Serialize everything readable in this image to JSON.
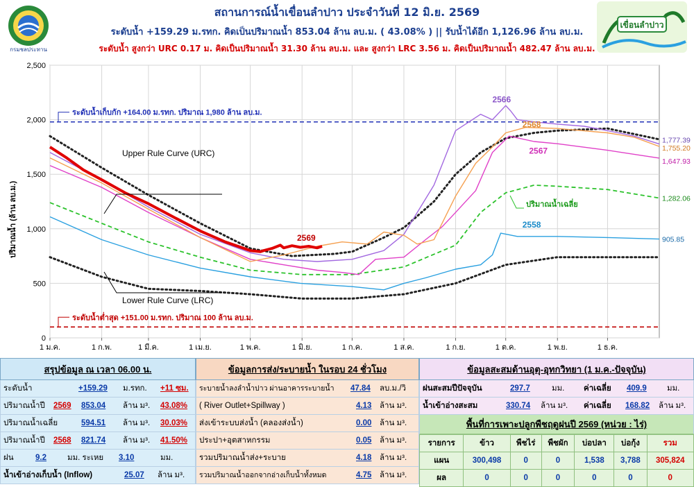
{
  "header": {
    "title": "สถานการณ์น้ำเขื่อนลำปาว ประจำวันที่ 12 มิ.ย. 2569",
    "line2": "ระดับน้ำ +159.29 ม.รทก.  คิดเป็นปริมาณน้ำ 853.04 ล้าน ลบ.ม. ( 43.08% )  || รับน้ำได้อีก 1,126.96 ล้าน ลบ.ม.",
    "line3": "ระดับน้ำ สูงกว่า URC 0.17 ม. คิดเป็นปริมาณน้ำ 31.30 ล้าน ลบ.ม. และ สูงกว่า LRC 3.56 ม. คิดเป็นปริมาณน้ำ 482.47 ล้าน ลบ.ม.",
    "left_logo_label": "กรมชลประทาน",
    "right_logo_label": "เขื่อนลำปาว"
  },
  "chart_data": {
    "type": "line",
    "ylabel": "ปริมาณน้ำ (ล้าน ลบ.ม.)",
    "ylim": [
      0,
      2500
    ],
    "yticks": [
      "0",
      "500",
      "1,000",
      "1,500",
      "2,000",
      "2,500"
    ],
    "ytick_values": [
      0,
      500,
      1000,
      1500,
      2000,
      2500
    ],
    "xlim": [
      0,
      365
    ],
    "xtick_labels": [
      "1 ม.ค.",
      "1 ก.พ.",
      "1 มี.ค.",
      "1 เม.ย.",
      "1 พ.ค.",
      "1 มิ.ย.",
      "1 ก.ค.",
      "1 ส.ค.",
      "1 ก.ย.",
      "1 ต.ค.",
      "1 พ.ย.",
      "1 ธ.ค."
    ],
    "xtick_days": [
      0,
      31,
      59,
      90,
      120,
      151,
      181,
      212,
      243,
      273,
      304,
      334
    ],
    "grid": true,
    "reference_lines": [
      {
        "label": "ระดับน้ำเก็บกัก  +164.00 ม.รทก. ปริมาณ 1,980 ล้าน ลบ.ม.",
        "value": 1980,
        "color": "#1f2fb5"
      },
      {
        "label": "ระดับน้ำต่ำสุด  +151.00  ม.รทก. ปริมาณ 100 ล้าน ลบ.ม.",
        "value": 100,
        "color": "#c00000"
      }
    ],
    "annotations": [
      "Upper Rule Curve (URC)",
      "Lower Rule Curve (LRC)",
      "ปริมาณน้ำเฉลี่ย"
    ],
    "series": [
      {
        "name": "2569",
        "color": "#e00000",
        "x": [
          0,
          10,
          20,
          31,
          45,
          59,
          75,
          90,
          105,
          120,
          126,
          128,
          133,
          138,
          140,
          145,
          150,
          155,
          160,
          163
        ],
        "y": [
          1750,
          1650,
          1540,
          1450,
          1330,
          1230,
          1100,
          980,
          880,
          800,
          790,
          800,
          820,
          850,
          825,
          845,
          830,
          840,
          825,
          840
        ]
      },
      {
        "name": "2566",
        "color": "#a268e0",
        "x": [
          0,
          31,
          59,
          90,
          120,
          140,
          160,
          181,
          200,
          212,
          230,
          243,
          258,
          265,
          273,
          276,
          280,
          290,
          304,
          320,
          334,
          350,
          365
        ],
        "y": [
          1700,
          1450,
          1200,
          950,
          780,
          720,
          700,
          720,
          800,
          950,
          1400,
          1900,
          2050,
          2000,
          2130,
          2080,
          2000,
          1980,
          1960,
          1940,
          1900,
          1850,
          1777.39
        ]
      },
      {
        "name": "2567",
        "color": "#e040c8",
        "x": [
          0,
          31,
          59,
          90,
          120,
          140,
          160,
          175,
          185,
          195,
          212,
          225,
          235,
          243,
          255,
          265,
          275,
          290,
          304,
          334,
          365
        ],
        "y": [
          1580,
          1380,
          1150,
          920,
          720,
          670,
          620,
          600,
          580,
          720,
          740,
          900,
          1020,
          1150,
          1350,
          1700,
          1850,
          1800,
          1780,
          1720,
          1647.93
        ]
      },
      {
        "name": "2568",
        "color": "#f5a050",
        "x": [
          0,
          31,
          59,
          90,
          120,
          140,
          160,
          175,
          190,
          200,
          212,
          220,
          230,
          243,
          255,
          265,
          273,
          285,
          304,
          334,
          350,
          365
        ],
        "y": [
          1650,
          1420,
          1180,
          920,
          700,
          760,
          840,
          880,
          860,
          970,
          940,
          860,
          900,
          1300,
          1600,
          1750,
          1880,
          1930,
          1920,
          1880,
          1840,
          1755.2
        ]
      },
      {
        "name": "2558",
        "color": "#2aa0e0",
        "x": [
          0,
          31,
          59,
          90,
          120,
          150,
          181,
          200,
          212,
          225,
          243,
          258,
          265,
          270,
          280,
          304,
          334,
          365
        ],
        "y": [
          1110,
          900,
          760,
          640,
          560,
          500,
          470,
          440,
          500,
          550,
          630,
          670,
          760,
          960,
          930,
          930,
          920,
          905.85
        ]
      },
      {
        "name": "ปริมาณน้ำเฉลี่ย",
        "color": "#2bc22b",
        "dashed": true,
        "x": [
          0,
          31,
          59,
          90,
          120,
          151,
          181,
          212,
          243,
          258,
          273,
          290,
          304,
          334,
          365
        ],
        "y": [
          1240,
          1050,
          880,
          740,
          620,
          580,
          580,
          650,
          850,
          1150,
          1330,
          1400,
          1390,
          1360,
          1282.06
        ]
      },
      {
        "name": "Upper Rule Curve (URC)",
        "color": "#222222",
        "dotted": true,
        "x": [
          0,
          31,
          59,
          90,
          120,
          145,
          170,
          181,
          200,
          212,
          230,
          243,
          258,
          273,
          290,
          304,
          334,
          365
        ],
        "y": [
          1850,
          1560,
          1310,
          1050,
          820,
          750,
          770,
          790,
          920,
          1010,
          1250,
          1500,
          1700,
          1830,
          1880,
          1900,
          1920,
          1820
        ]
      },
      {
        "name": "Lower Rule Curve (LRC)",
        "color": "#222222",
        "dotted": true,
        "x": [
          0,
          31,
          59,
          90,
          120,
          151,
          181,
          212,
          243,
          273,
          304,
          334,
          365
        ],
        "y": [
          740,
          560,
          450,
          430,
          400,
          360,
          360,
          400,
          500,
          670,
          740,
          740,
          740
        ]
      }
    ],
    "series_labels": [
      {
        "text": "2569",
        "series": "2569"
      },
      {
        "text": "2566",
        "series": "2566"
      },
      {
        "text": "2567",
        "series": "2567"
      },
      {
        "text": "2568",
        "series": "2568"
      },
      {
        "text": "2558",
        "series": "2558"
      }
    ],
    "end_labels": [
      "1,777.39",
      "1,755.20",
      "1,647.93",
      "1,282.06",
      "905.85"
    ]
  },
  "summary": {
    "title": "สรุปข้อมูล ณ เวลา 06.00 น.",
    "rows": [
      {
        "label": "ระดับน้ำ",
        "value": "+159.29",
        "unit": "ม.รทก.",
        "extra": "+11 ซม."
      },
      {
        "label": "ปริมาณน้ำปี",
        "year": "2569",
        "value": "853.04",
        "unit": "ล้าน ม³.",
        "extra": "43.08%"
      },
      {
        "label": "ปริมาณน้ำเฉลี่ย",
        "value": "594.51",
        "unit": "ล้าน ม³.",
        "extra": "30.03%"
      },
      {
        "label": "ปริมาณน้ำปี",
        "year": "2568",
        "value": "821.74",
        "unit": "ล้าน ม³.",
        "extra": "41.50%"
      },
      {
        "label": "ฝน",
        "value": "9.2",
        "unit": "มม. ระเหย",
        "extra": "3.10",
        "extra_unit": "มม."
      },
      {
        "label": "น้ำเข้าอ่างเก็บน้ำ (Inflow)",
        "value": "25.07",
        "unit": "ล้าน ม³."
      }
    ]
  },
  "release": {
    "title": "ข้อมูลการส่ง/ระบายน้ำ ในรอบ 24 ชั่วโมง",
    "rows": [
      {
        "label": "ระบายน้ำลงลำน้ำปาว ผ่านอาคารระบายน้ำ",
        "value": "47.84",
        "unit": "ลบ.ม./วิ"
      },
      {
        "label": "( River Outlet+Spillway )",
        "value": "4.13",
        "unit": "ล้าน ม³."
      },
      {
        "label": "ส่งเข้าระบบส่งน้ำ (คลองส่งน้ำ)",
        "value": "0.00",
        "unit": "ล้าน ม³."
      },
      {
        "label": "ประปา+อุตสาหกรรม",
        "value": "0.05",
        "unit": "ล้าน ม³."
      },
      {
        "label": "รวมปริมาณน้ำส่ง+ระบาย",
        "value": "4.18",
        "unit": "ล้าน ม³."
      },
      {
        "label": "รวมปริมาณน้ำออกจากอ่างเก็บน้ำทั้งหมด",
        "value": "4.75",
        "unit": "ล้าน ม³."
      }
    ]
  },
  "hydro": {
    "title": "ข้อมูลสะสมด้านอุตุ-อุทกวิทยา (1 ม.ค.-ปัจจุบัน)",
    "rows": [
      {
        "label": "ฝนสะสมปีปัจจุบัน",
        "value": "297.7",
        "unit": "มม.",
        "avg_label": "ค่าเฉลี่ย",
        "avg": "409.9",
        "avg_unit": "มม."
      },
      {
        "label": "น้ำเข้าอ่างสะสม",
        "value": "330.74",
        "unit": "ล้าน ม³.",
        "avg_label": "ค่าเฉลี่ย",
        "avg": "168.82",
        "avg_unit": "ล้าน ม³."
      }
    ],
    "crop_title": "พื้นที่การเพาะปลูกพืชฤดูฝนปี 2569 (หน่วย : ไร่)",
    "crop_headers": [
      "รายการ",
      "ข้าว",
      "พืชไร่",
      "พืชผัก",
      "บ่อปลา",
      "บ่อกุ้ง",
      "รวม"
    ],
    "crop_rows": [
      [
        "แผน",
        "300,498",
        "0",
        "0",
        "1,538",
        "3,788",
        "305,824"
      ],
      [
        "ผล",
        "0",
        "0",
        "0",
        "0",
        "0",
        "0"
      ]
    ]
  }
}
